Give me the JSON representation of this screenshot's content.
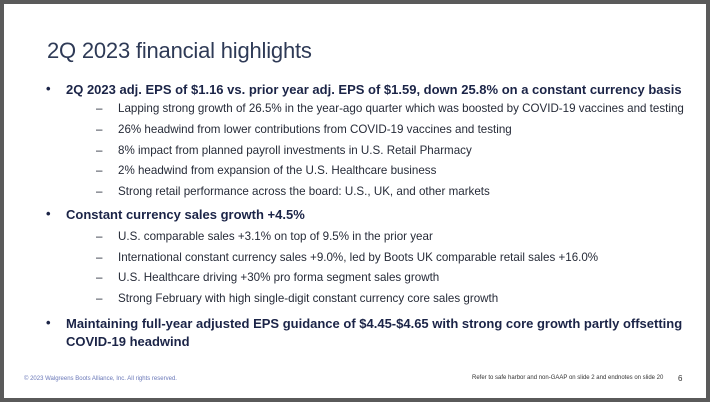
{
  "title": "2Q 2023 financial highlights",
  "bullets": [
    {
      "text": "2Q 2023 adj. EPS of $1.16 vs. prior year adj. EPS of $1.59, down 25.8% on a constant currency basis",
      "subs": [
        "Lapping strong growth of 26.5% in the year-ago quarter which was boosted by COVID-19 vaccines and testing",
        "26% headwind from lower contributions from COVID-19 vaccines and testing",
        "8% impact from planned payroll investments in U.S. Retail Pharmacy",
        "2% headwind from expansion of the U.S. Healthcare business",
        "Strong retail performance across the board: U.S., UK, and other markets"
      ]
    },
    {
      "text": "Constant currency sales growth +4.5%",
      "subs": [
        "U.S. comparable sales +3.1% on top of 9.5% in the prior year",
        "International constant currency sales +9.0%, led by Boots UK comparable retail sales +16.0%",
        "U.S. Healthcare driving +30% pro forma segment sales growth",
        "Strong February with high single-digit constant currency core sales growth"
      ]
    },
    {
      "text_line1": "Maintaining full-year adjusted EPS guidance of $4.45-$4.65 with strong core growth partly offsetting",
      "text_line2": "COVID-19 headwind"
    }
  ],
  "symbols": {
    "bullet": "•",
    "dash": "–"
  },
  "footer": {
    "copyright": "© 2023 Walgreens Boots Alliance, Inc. All rights reserved.",
    "note": "Refer to safe harbor and non-GAAP on slide 2 and endnotes on slide 20",
    "page": "6"
  }
}
